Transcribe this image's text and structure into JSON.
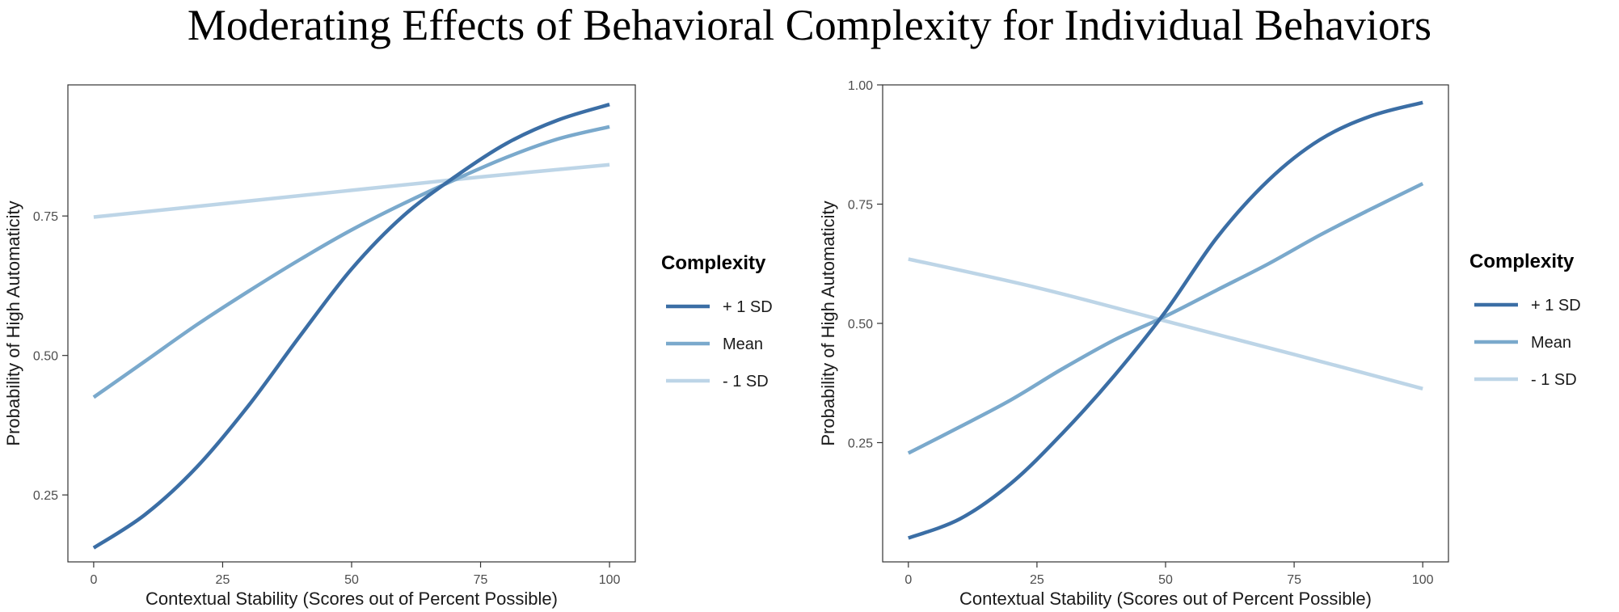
{
  "title": "Moderating Effects of Behavioral Complexity for Individual Behaviors",
  "chart_data": [
    {
      "type": "line",
      "xlabel": "Contextual Stability (Scores out of Percent Possible)",
      "ylabel": "Probability of High Automaticity",
      "xlim": [
        -5,
        105
      ],
      "ylim": [
        0.13,
        0.985
      ],
      "xticks": [
        0,
        25,
        50,
        75,
        100
      ],
      "xtick_labels": [
        "0",
        "25",
        "50",
        "75",
        "100"
      ],
      "yticks": [
        0.25,
        0.5,
        0.75
      ],
      "ytick_labels": [
        "0.25",
        "0.50",
        "0.75"
      ],
      "legend": {
        "title": "Complexity",
        "position": "right"
      },
      "series": [
        {
          "name": "+ 1 SD",
          "color": "#3b6ea5",
          "x": [
            0,
            10,
            20,
            30,
            40,
            50,
            60,
            70,
            80,
            90,
            100
          ],
          "y": [
            0.155,
            0.215,
            0.3,
            0.41,
            0.535,
            0.655,
            0.75,
            0.82,
            0.88,
            0.922,
            0.95
          ]
        },
        {
          "name": "Mean",
          "color": "#7aa9cc",
          "x": [
            0,
            10,
            20,
            30,
            40,
            50,
            60,
            70,
            80,
            90,
            100
          ],
          "y": [
            0.425,
            0.49,
            0.555,
            0.615,
            0.672,
            0.725,
            0.772,
            0.815,
            0.855,
            0.888,
            0.91
          ]
        },
        {
          "name": "- 1 SD",
          "color": "#bdd5e7",
          "x": [
            0,
            25,
            50,
            75,
            100
          ],
          "y": [
            0.748,
            0.772,
            0.796,
            0.82,
            0.842
          ]
        }
      ]
    },
    {
      "type": "line",
      "xlabel": "Contextual Stability (Scores out of Percent Possible)",
      "ylabel": "Probability of High Automaticity",
      "xlim": [
        -5,
        105
      ],
      "ylim": [
        0.0,
        1.0
      ],
      "xticks": [
        0,
        25,
        50,
        75,
        100
      ],
      "xtick_labels": [
        "0",
        "25",
        "50",
        "75",
        "100"
      ],
      "yticks": [
        0.25,
        0.5,
        0.75,
        1.0
      ],
      "ytick_labels": [
        "0.25",
        "0.50",
        "0.75",
        "1.00"
      ],
      "legend": {
        "title": "Complexity",
        "position": "right"
      },
      "series": [
        {
          "name": "+ 1 SD",
          "color": "#3b6ea5",
          "x": [
            0,
            10,
            20,
            30,
            40,
            50,
            60,
            70,
            80,
            90,
            100
          ],
          "y": [
            0.05,
            0.09,
            0.165,
            0.27,
            0.39,
            0.525,
            0.68,
            0.8,
            0.885,
            0.935,
            0.963
          ]
        },
        {
          "name": "Mean",
          "color": "#7aa9cc",
          "x": [
            0,
            10,
            20,
            30,
            40,
            50,
            60,
            70,
            80,
            90,
            100
          ],
          "y": [
            0.228,
            0.283,
            0.34,
            0.405,
            0.465,
            0.515,
            0.57,
            0.625,
            0.685,
            0.74,
            0.793
          ]
        },
        {
          "name": "- 1 SD",
          "color": "#bdd5e7",
          "x": [
            0,
            25,
            50,
            75,
            100
          ],
          "y": [
            0.635,
            0.575,
            0.505,
            0.435,
            0.363
          ]
        }
      ]
    }
  ]
}
